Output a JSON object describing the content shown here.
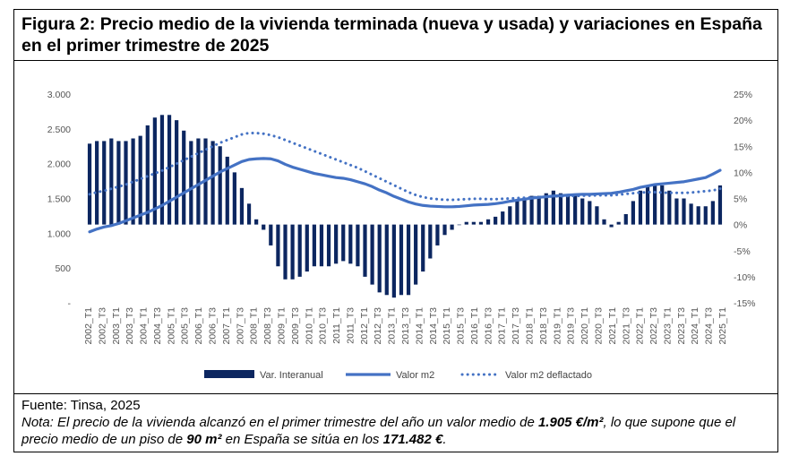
{
  "figure": {
    "title": "Figura 2: Precio medio de la vivienda terminada (nueva y usada) y variaciones en España en el primer trimestre de 2025"
  },
  "footer": {
    "source": "Fuente: Tinsa, 2025",
    "note_parts": [
      {
        "text": "Nota: El precio de la vivienda alcanzó en el primer trimestre del año un valor medio de ",
        "bold": false
      },
      {
        "text": "1.905 €/m²",
        "bold": true
      },
      {
        "text": ", lo que supone que el precio medio de un piso de ",
        "bold": false
      },
      {
        "text": "90 m²",
        "bold": true
      },
      {
        "text": " en España se sitúa en los ",
        "bold": false
      },
      {
        "text": "171.482 €",
        "bold": true
      },
      {
        "text": ".",
        "bold": false
      }
    ]
  },
  "colors": {
    "bars": "#0c2660",
    "valor_m2": "#4472c4",
    "deflactado": "#4472c4"
  },
  "chart_data": {
    "type": "bar+line",
    "x_tick_labels": [
      "2002_T1",
      "2002_T3",
      "2003_T1",
      "2003_T3",
      "2004_T1",
      "2004_T3",
      "2005_T1",
      "2005_T3",
      "2006_T1",
      "2006_T3",
      "2007_T1",
      "2007_T3",
      "2008_T1",
      "2008_T3",
      "2009_T1",
      "2009_T3",
      "2010_T1",
      "2010_T3",
      "2011_T1",
      "2011_T3",
      "2012_T1",
      "2012_T3",
      "2013_T1",
      "2013_T3",
      "2014_T1",
      "2014_T3",
      "2015_T1",
      "2015_T3",
      "2016_T1",
      "2016_T3",
      "2017_T1",
      "2017_T3",
      "2018_T1",
      "2018_T3",
      "2019_T1",
      "2019_T3",
      "2020_T1",
      "2020_T3",
      "2021_T1",
      "2021_T3",
      "2022_T1",
      "2022_T3",
      "2023_T1",
      "2023_T3",
      "2024_T1",
      "2024_T3",
      "2025_T1"
    ],
    "left_axis": {
      "ticks": [
        "-",
        "500",
        "1.000",
        "1.500",
        "2.000",
        "2.500",
        "3.000"
      ],
      "min": 0,
      "max": 3000
    },
    "right_axis": {
      "ticks": [
        "-15%",
        "-10%",
        "-5%",
        "0%",
        "5%",
        "10%",
        "15%",
        "20%",
        "25%"
      ],
      "min": -15,
      "max": 25
    },
    "legend": {
      "position": "bottom",
      "entries": [
        "Var. Interanual",
        "Valor m2",
        "Valor m2 deflactado"
      ]
    },
    "series": [
      {
        "name": "Var. Interanual",
        "type": "bar",
        "axis": "right",
        "values": [
          15.5,
          16,
          16,
          16.5,
          16,
          16,
          16.5,
          17,
          19,
          20.5,
          21,
          21,
          20,
          18,
          16,
          16.5,
          16.5,
          16,
          15,
          13,
          10,
          7,
          4,
          1,
          -1,
          -4,
          -8,
          -10.5,
          -10.5,
          -10,
          -9,
          -8,
          -8,
          -8,
          -7.5,
          -7,
          -7.5,
          -8,
          -10,
          -11.5,
          -13,
          -13.5,
          -14,
          -13.5,
          -13.5,
          -11.5,
          -9,
          -6.5,
          -4,
          -2,
          -1,
          0,
          0.5,
          0.5,
          0.5,
          1,
          1.5,
          2.5,
          3.5,
          4.5,
          5,
          5.5,
          5.5,
          6,
          6.5,
          6,
          5.5,
          5.5,
          5,
          4.5,
          3.5,
          1,
          -0.5,
          0.5,
          2,
          4.5,
          6.5,
          7.5,
          7.5,
          7.5,
          6.5,
          5,
          5,
          4,
          3.5,
          3.5,
          4.5,
          7.5
        ]
      },
      {
        "name": "Valor m2",
        "type": "line",
        "axis": "left",
        "values": [
          1020,
          1060,
          1090,
          1110,
          1140,
          1180,
          1220,
          1260,
          1300,
          1350,
          1400,
          1460,
          1520,
          1580,
          1640,
          1700,
          1760,
          1820,
          1880,
          1930,
          1980,
          2030,
          2060,
          2070,
          2075,
          2070,
          2040,
          1990,
          1950,
          1920,
          1890,
          1860,
          1840,
          1820,
          1800,
          1790,
          1770,
          1740,
          1710,
          1670,
          1620,
          1580,
          1530,
          1490,
          1450,
          1420,
          1400,
          1390,
          1385,
          1380,
          1380,
          1385,
          1395,
          1405,
          1410,
          1415,
          1425,
          1440,
          1460,
          1475,
          1490,
          1505,
          1515,
          1525,
          1535,
          1540,
          1548,
          1555,
          1560,
          1560,
          1565,
          1570,
          1575,
          1590,
          1610,
          1630,
          1660,
          1680,
          1700,
          1710,
          1720,
          1730,
          1740,
          1760,
          1780,
          1800,
          1850,
          1905
        ]
      },
      {
        "name": "Valor m2 deflactado",
        "type": "line",
        "axis": "left",
        "dashed": true,
        "values": [
          1560,
          1590,
          1610,
          1640,
          1670,
          1700,
          1740,
          1780,
          1820,
          1860,
          1900,
          1950,
          2000,
          2050,
          2100,
          2150,
          2200,
          2250,
          2300,
          2340,
          2380,
          2420,
          2440,
          2440,
          2430,
          2410,
          2380,
          2340,
          2300,
          2260,
          2220,
          2180,
          2140,
          2100,
          2060,
          2020,
          1980,
          1940,
          1890,
          1840,
          1790,
          1740,
          1690,
          1640,
          1590,
          1550,
          1520,
          1500,
          1490,
          1480,
          1480,
          1485,
          1490,
          1495,
          1495,
          1490,
          1490,
          1495,
          1500,
          1505,
          1510,
          1515,
          1520,
          1525,
          1530,
          1530,
          1535,
          1535,
          1540,
          1540,
          1545,
          1545,
          1545,
          1555,
          1565,
          1575,
          1585,
          1590,
          1590,
          1585,
          1580,
          1580,
          1580,
          1585,
          1595,
          1605,
          1615,
          1640
        ]
      }
    ]
  }
}
